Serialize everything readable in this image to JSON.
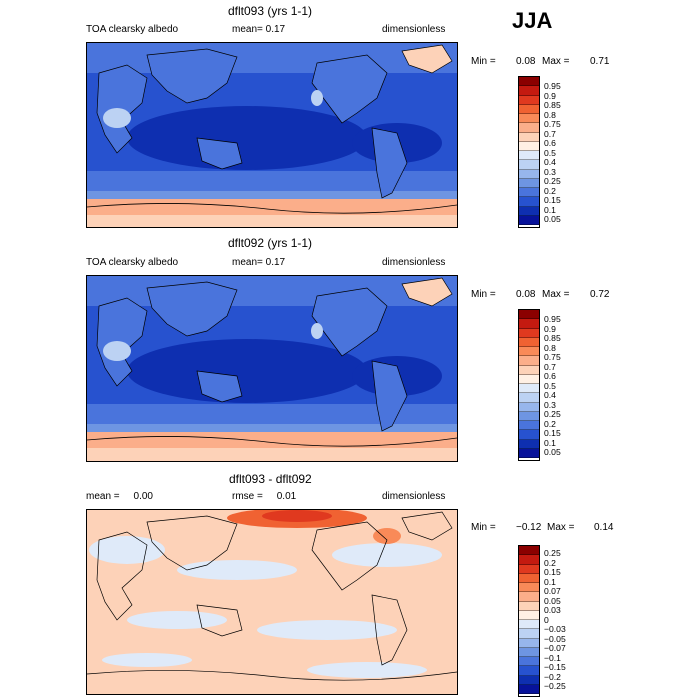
{
  "season": "JJA",
  "panels": [
    {
      "title": "dflt093 (yrs 1-1)",
      "left_label": "TOA clearsky albedo",
      "mid_label": "mean=   0.17",
      "right_label": "dimensionless",
      "min_label": "Min =",
      "min_value": "0.08",
      "max_label": "Max =",
      "max_value": "0.71",
      "colorbar_ticks": [
        "0.95",
        "0.9",
        "0.85",
        "0.8",
        "0.75",
        "0.7",
        "0.6",
        "0.5",
        "0.4",
        "0.3",
        "0.25",
        "0.2",
        "0.15",
        "0.1",
        "0.05"
      ],
      "colorbar_colors": [
        "#8b0000",
        "#c41a10",
        "#e0391f",
        "#f06232",
        "#f98a58",
        "#fbae8a",
        "#fdd2b8",
        "#fff0e4",
        "#dfeaf9",
        "#bcd2f3",
        "#97b6ec",
        "#6e95e2",
        "#4a74dc",
        "#2752cf",
        "#0e2fb0",
        "#07129a"
      ]
    },
    {
      "title": "dflt092 (yrs 1-1)",
      "left_label": "TOA clearsky albedo",
      "mid_label": "mean=   0.17",
      "right_label": "dimensionless",
      "min_label": "Min =",
      "min_value": "0.08",
      "max_label": "Max =",
      "max_value": "0.72",
      "colorbar_ticks": [
        "0.95",
        "0.9",
        "0.85",
        "0.8",
        "0.75",
        "0.7",
        "0.6",
        "0.5",
        "0.4",
        "0.3",
        "0.25",
        "0.2",
        "0.15",
        "0.1",
        "0.05"
      ],
      "colorbar_colors": [
        "#8b0000",
        "#c41a10",
        "#e0391f",
        "#f06232",
        "#f98a58",
        "#fbae8a",
        "#fdd2b8",
        "#fff0e4",
        "#dfeaf9",
        "#bcd2f3",
        "#97b6ec",
        "#6e95e2",
        "#4a74dc",
        "#2752cf",
        "#0e2fb0",
        "#07129a"
      ]
    },
    {
      "title": "dflt093 - dflt092",
      "left_label": "mean =     0.00",
      "mid_label": "rmse =     0.01",
      "right_label": "dimensionless",
      "min_label": "Min =",
      "min_value": "−0.12",
      "max_label": "Max =",
      "max_value": "0.14",
      "colorbar_ticks": [
        "0.25",
        "0.2",
        "0.15",
        "0.1",
        "0.07",
        "0.05",
        "0.03",
        "0",
        "−0.03",
        "−0.05",
        "−0.07",
        "−0.1",
        "−0.15",
        "−0.2",
        "−0.25"
      ],
      "colorbar_colors": [
        "#8b0000",
        "#c41a10",
        "#e0391f",
        "#f06232",
        "#f98a58",
        "#fbae8a",
        "#fdd2b8",
        "#fff0e4",
        "#dfeaf9",
        "#bcd2f3",
        "#97b6ec",
        "#6e95e2",
        "#4a74dc",
        "#2752cf",
        "#0e2fb0",
        "#07129a"
      ]
    }
  ]
}
